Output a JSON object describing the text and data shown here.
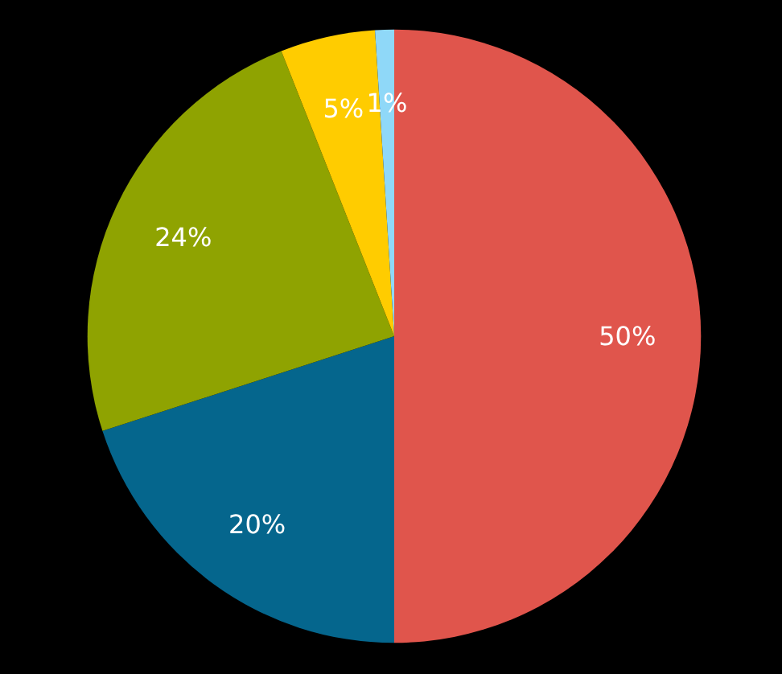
{
  "chart_data": {
    "type": "pie",
    "categories": [
      null,
      null,
      null,
      null,
      null
    ],
    "values": [
      50,
      20,
      24,
      5,
      1
    ],
    "value_labels": [
      "50%",
      "20%",
      "24%",
      "5%",
      "1%"
    ],
    "colors": [
      "#e0554c",
      "#05668d",
      "#8fa301",
      "#ffcc00",
      "#8fd8f8"
    ]
  }
}
